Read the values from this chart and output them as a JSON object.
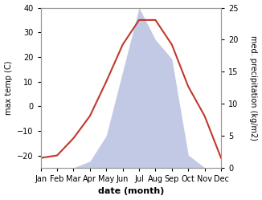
{
  "months": [
    "Jan",
    "Feb",
    "Mar",
    "Apr",
    "May",
    "Jun",
    "Jul",
    "Aug",
    "Sep",
    "Oct",
    "Nov",
    "Dec"
  ],
  "temperature": [
    -21,
    -20,
    -13,
    -4,
    10,
    25,
    35,
    35,
    25,
    8,
    -4,
    -21
  ],
  "precipitation": [
    0,
    0,
    0,
    1,
    5,
    15,
    25,
    20,
    17,
    2,
    0,
    0
  ],
  "temp_color": "#c0392b",
  "precip_fill_color": "#b8c0e0",
  "precip_fill_alpha": 0.85,
  "temp_ylim": [
    -25,
    40
  ],
  "precip_ylim": [
    0,
    25
  ],
  "precip_scale_min": -25,
  "precip_scale_max": 40,
  "temp_yticks": [
    -20,
    -10,
    0,
    10,
    20,
    30,
    40
  ],
  "precip_yticks": [
    0,
    5,
    10,
    15,
    20,
    25
  ],
  "xlabel": "date (month)",
  "ylabel_left": "max temp (C)",
  "ylabel_right": "med. precipitation (kg/m2)",
  "bg_color": "#ffffff",
  "spine_color": "#999999",
  "figsize": [
    3.26,
    2.49
  ],
  "dpi": 100
}
